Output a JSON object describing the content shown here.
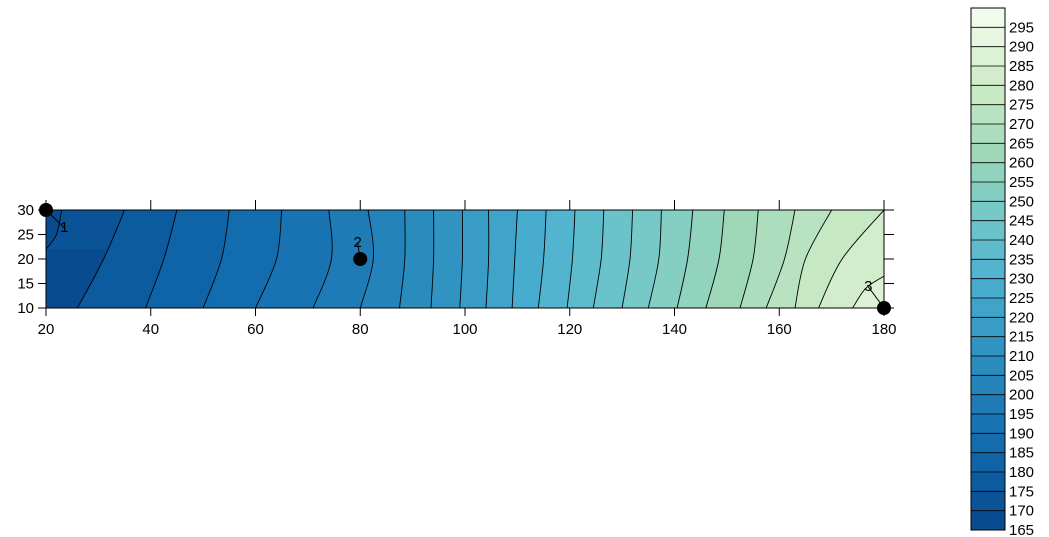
{
  "chart_data": {
    "type": "contour",
    "title": "",
    "xlabel": "",
    "ylabel": "",
    "xlim": [
      20,
      180
    ],
    "ylim": [
      10,
      30
    ],
    "x_ticks": [
      20,
      40,
      60,
      80,
      100,
      120,
      140,
      160,
      180
    ],
    "y_ticks": [
      10,
      15,
      20,
      25,
      30
    ],
    "x_tick_labels": [
      "20",
      "40",
      "60",
      "80",
      "100",
      "120",
      "140",
      "160",
      "180"
    ],
    "y_tick_labels": [
      "10",
      "15",
      "20",
      "25",
      "30"
    ],
    "color_scale": {
      "min": 165,
      "max": 300,
      "step": 5,
      "low_color": "#08478b",
      "high_color": "#f7fcf0",
      "tick_labels": [
        "165",
        "170",
        "175",
        "180",
        "185",
        "190",
        "195",
        "200",
        "205",
        "210",
        "215",
        "220",
        "225",
        "230",
        "235",
        "240",
        "245",
        "250",
        "255",
        "260",
        "265",
        "270",
        "275",
        "280",
        "285",
        "290",
        "295"
      ]
    },
    "isolines": [
      {
        "level": 170,
        "points": [
          [
            23.0,
            30
          ],
          [
            22.0,
            25
          ],
          [
            20,
            22
          ]
        ]
      },
      {
        "level": 175,
        "points": [
          [
            35.0,
            30
          ],
          [
            31.0,
            20
          ],
          [
            26.0,
            10
          ]
        ]
      },
      {
        "level": 180,
        "points": [
          [
            45.0,
            30
          ],
          [
            42.5,
            20
          ],
          [
            39.0,
            10
          ]
        ]
      },
      {
        "level": 185,
        "points": [
          [
            55.0,
            30
          ],
          [
            53.5,
            20
          ],
          [
            50.0,
            10
          ]
        ]
      },
      {
        "level": 190,
        "points": [
          [
            65.0,
            30
          ],
          [
            64.0,
            20
          ],
          [
            60.0,
            10
          ]
        ]
      },
      {
        "level": 195,
        "points": [
          [
            74.0,
            30
          ],
          [
            74.5,
            20
          ],
          [
            71.0,
            10
          ]
        ]
      },
      {
        "level": 200,
        "points": [
          [
            81.5,
            30
          ],
          [
            82.5,
            20
          ],
          [
            80.0,
            10
          ]
        ]
      },
      {
        "level": 205,
        "points": [
          [
            88.5,
            30
          ],
          [
            88.5,
            20
          ],
          [
            87.5,
            10
          ]
        ]
      },
      {
        "level": 210,
        "points": [
          [
            94.0,
            30
          ],
          [
            94.0,
            20
          ],
          [
            93.5,
            10
          ]
        ]
      },
      {
        "level": 215,
        "points": [
          [
            99.5,
            30
          ],
          [
            99.5,
            20
          ],
          [
            99.0,
            10
          ]
        ]
      },
      {
        "level": 220,
        "points": [
          [
            104.5,
            30
          ],
          [
            104.5,
            20
          ],
          [
            104.0,
            10
          ]
        ]
      },
      {
        "level": 225,
        "points": [
          [
            110.0,
            30
          ],
          [
            109.5,
            20
          ],
          [
            109.0,
            10
          ]
        ]
      },
      {
        "level": 230,
        "points": [
          [
            115.5,
            30
          ],
          [
            115.0,
            20
          ],
          [
            114.0,
            10
          ]
        ]
      },
      {
        "level": 235,
        "points": [
          [
            121.0,
            30
          ],
          [
            120.5,
            20
          ],
          [
            119.5,
            10
          ]
        ]
      },
      {
        "level": 240,
        "points": [
          [
            126.5,
            30
          ],
          [
            126.0,
            20
          ],
          [
            124.5,
            10
          ]
        ]
      },
      {
        "level": 245,
        "points": [
          [
            132.0,
            30
          ],
          [
            131.5,
            20
          ],
          [
            130.0,
            10
          ]
        ]
      },
      {
        "level": 250,
        "points": [
          [
            137.5,
            30
          ],
          [
            137.0,
            20
          ],
          [
            135.0,
            10
          ]
        ]
      },
      {
        "level": 255,
        "points": [
          [
            143.5,
            30
          ],
          [
            142.5,
            20
          ],
          [
            140.5,
            10
          ]
        ]
      },
      {
        "level": 260,
        "points": [
          [
            149.5,
            30
          ],
          [
            148.5,
            20
          ],
          [
            146.0,
            10
          ]
        ]
      },
      {
        "level": 265,
        "points": [
          [
            156.0,
            30
          ],
          [
            155.0,
            20
          ],
          [
            152.5,
            10
          ]
        ]
      },
      {
        "level": 270,
        "points": [
          [
            163.0,
            30
          ],
          [
            161.0,
            20
          ],
          [
            157.5,
            10
          ]
        ]
      },
      {
        "level": 275,
        "points": [
          [
            170.0,
            30
          ],
          [
            165.0,
            20
          ],
          [
            163.0,
            10
          ]
        ]
      },
      {
        "level": 280,
        "points": [
          [
            180,
            30
          ],
          [
            172.0,
            20
          ],
          [
            167.5,
            10
          ]
        ]
      },
      {
        "level": 285,
        "points": [
          [
            180,
            16.5
          ],
          [
            176.5,
            14
          ],
          [
            174.0,
            10
          ]
        ]
      }
    ],
    "markers": [
      {
        "label": "1",
        "x": 20,
        "y": 30,
        "label_x": 23.5,
        "label_y": 25.5
      },
      {
        "label": "2",
        "x": 80,
        "y": 20,
        "label_x": 79.5,
        "label_y": 22.5
      },
      {
        "label": "3",
        "x": 180,
        "y": 10,
        "label_x": 177.0,
        "label_y": 13.5
      }
    ]
  }
}
